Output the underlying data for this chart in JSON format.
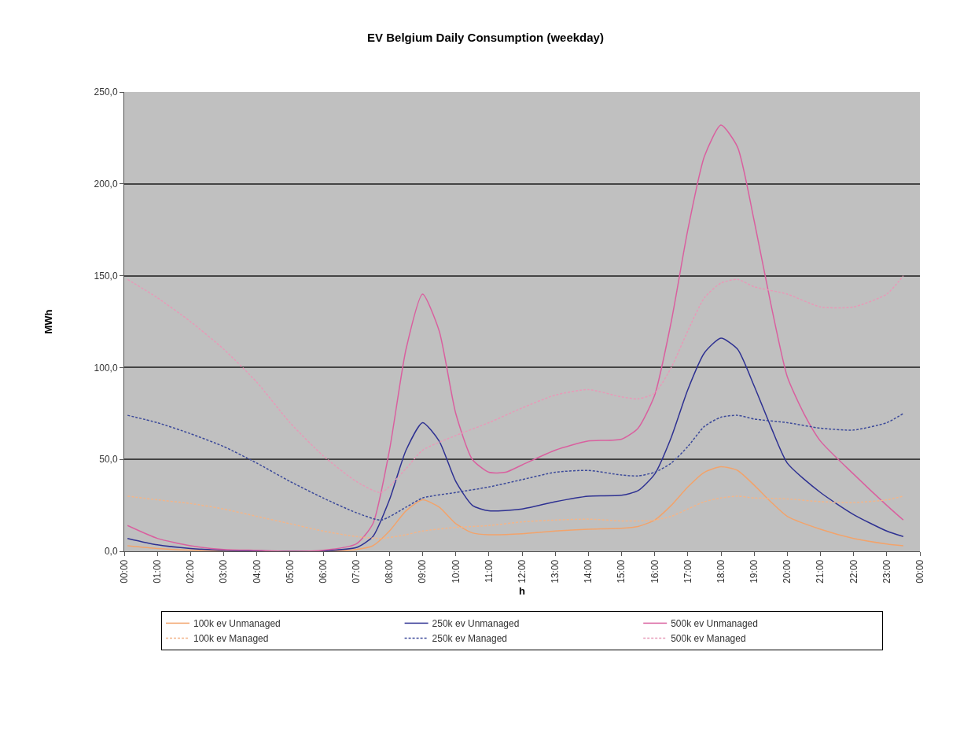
{
  "chart_data": {
    "type": "line",
    "title": "EV Belgium Daily Consumption (weekday)",
    "xlabel": "h",
    "ylabel": "MWh",
    "xlim": [
      0,
      24
    ],
    "xticks": [
      {
        "value": 0,
        "label": "00:00"
      },
      {
        "value": 1,
        "label": "01:00"
      },
      {
        "value": 2,
        "label": "02:00"
      },
      {
        "value": 3,
        "label": "03:00"
      },
      {
        "value": 4,
        "label": "04:00"
      },
      {
        "value": 5,
        "label": "05:00"
      },
      {
        "value": 6,
        "label": "06:00"
      },
      {
        "value": 7,
        "label": "07:00"
      },
      {
        "value": 8,
        "label": "08:00"
      },
      {
        "value": 9,
        "label": "09:00"
      },
      {
        "value": 10,
        "label": "10:00"
      },
      {
        "value": 11,
        "label": "11:00"
      },
      {
        "value": 12,
        "label": "12:00"
      },
      {
        "value": 13,
        "label": "13:00"
      },
      {
        "value": 14,
        "label": "14:00"
      },
      {
        "value": 15,
        "label": "15:00"
      },
      {
        "value": 16,
        "label": "16:00"
      },
      {
        "value": 17,
        "label": "17:00"
      },
      {
        "value": 18,
        "label": "18:00"
      },
      {
        "value": 19,
        "label": "19:00"
      },
      {
        "value": 20,
        "label": "20:00"
      },
      {
        "value": 21,
        "label": "21:00"
      },
      {
        "value": 22,
        "label": "22:00"
      },
      {
        "value": 23,
        "label": "23:00"
      },
      {
        "value": 24,
        "label": "00:00"
      }
    ],
    "ylim": [
      0,
      250
    ],
    "yticks": [
      {
        "value": 0,
        "label": "0,0"
      },
      {
        "value": 50,
        "label": "50,0"
      },
      {
        "value": 100,
        "label": "100,0"
      },
      {
        "value": 150,
        "label": "150,0"
      },
      {
        "value": 200,
        "label": "200,0"
      },
      {
        "value": 250,
        "label": "250,0"
      }
    ],
    "grid": "y",
    "legend": "bottom",
    "marker": "none",
    "series": [
      {
        "name": "100k ev Unmanaged",
        "color": "#f2a36b",
        "line_style": "solid",
        "x": [
          0.1,
          1,
          2,
          3,
          4,
          5,
          6,
          7,
          7.5,
          8,
          8.5,
          9,
          9.5,
          10,
          10.5,
          11,
          12,
          13,
          14,
          15,
          15.5,
          16,
          16.5,
          17,
          17.5,
          18,
          18.5,
          19,
          19.5,
          20,
          21,
          22,
          23,
          23.5
        ],
        "values": [
          3,
          1.5,
          0.6,
          0.2,
          0,
          0,
          0,
          1,
          3,
          11,
          22,
          28,
          24,
          15,
          10,
          9,
          9.5,
          11,
          12,
          12.5,
          13.5,
          17,
          25,
          35,
          43,
          46,
          44,
          36,
          27,
          19,
          12,
          7,
          4,
          3
        ]
      },
      {
        "name": "250k ev Unmanaged",
        "color": "#2e3192",
        "line_style": "solid",
        "x": [
          0.1,
          1,
          2,
          3,
          4,
          5,
          6,
          7,
          7.5,
          8,
          8.5,
          9,
          9.5,
          10,
          10.5,
          11,
          12,
          13,
          14,
          15,
          15.5,
          16,
          16.5,
          17,
          17.5,
          18,
          18.5,
          19,
          19.5,
          20,
          21,
          22,
          23,
          23.5
        ],
        "values": [
          7,
          3.5,
          1.5,
          0.5,
          0.2,
          0,
          0.2,
          2,
          8,
          28,
          55,
          70,
          60,
          38,
          25,
          22,
          23,
          27,
          30,
          30.5,
          33,
          42,
          62,
          88,
          108,
          116,
          110,
          90,
          68,
          48,
          32,
          20,
          11,
          8
        ]
      },
      {
        "name": "500k ev Unmanaged",
        "color": "#d9609f",
        "line_style": "solid",
        "x": [
          0.1,
          1,
          2,
          3,
          4,
          5,
          6,
          7,
          7.5,
          8,
          8.5,
          9,
          9.5,
          10,
          10.5,
          11,
          11.5,
          12,
          13,
          14,
          15,
          15.5,
          16,
          16.5,
          17,
          17.5,
          18,
          18.5,
          19,
          19.5,
          20,
          20.5,
          21,
          22,
          23,
          23.5
        ],
        "values": [
          14,
          7,
          3,
          1,
          0.5,
          0,
          0.5,
          4,
          15,
          55,
          110,
          140,
          120,
          75,
          50,
          43,
          43,
          47,
          55,
          60,
          61,
          67,
          85,
          125,
          175,
          215,
          232,
          220,
          180,
          135,
          95,
          75,
          60,
          42,
          25,
          17
        ]
      },
      {
        "name": "100k ev Managed",
        "color": "#f2b58a",
        "line_style": "dashed",
        "x": [
          0.1,
          1,
          2,
          3,
          4,
          5,
          6,
          7,
          7.75,
          8.5,
          9,
          10,
          11,
          12,
          13,
          14,
          15,
          15.5,
          16,
          16.5,
          17,
          17.5,
          18,
          18.5,
          19,
          20,
          21,
          22,
          23,
          23.5
        ],
        "values": [
          30,
          28,
          26,
          23,
          19,
          15,
          11,
          8,
          7,
          9,
          11,
          13,
          14,
          16,
          17,
          17.5,
          16.5,
          16.5,
          17,
          19,
          23,
          27,
          29,
          30,
          29,
          28.5,
          27,
          26.5,
          28,
          30
        ]
      },
      {
        "name": "250k ev Managed",
        "color": "#3c4a9a",
        "line_style": "dashed",
        "x": [
          0.1,
          1,
          2,
          3,
          4,
          5,
          6,
          7,
          7.75,
          8.5,
          9,
          10,
          11,
          12,
          13,
          14,
          15,
          15.5,
          16,
          16.5,
          17,
          17.5,
          18,
          18.5,
          19,
          20,
          21,
          22,
          23,
          23.5
        ],
        "values": [
          74,
          70,
          64,
          57,
          48,
          38,
          29,
          21,
          17,
          24,
          29,
          32,
          35,
          39,
          43,
          44,
          41.5,
          41,
          43,
          48,
          57,
          68,
          73,
          74,
          72,
          70,
          67,
          66,
          70,
          75
        ]
      },
      {
        "name": "500k ev Managed",
        "color": "#e79ab8",
        "line_style": "dashed",
        "x": [
          0.1,
          1,
          2,
          3,
          4,
          5,
          6,
          7,
          7.75,
          8.5,
          9,
          10,
          11,
          12,
          13,
          14,
          15,
          15.5,
          16,
          16.5,
          17,
          17.5,
          18,
          18.5,
          19,
          20,
          21,
          22,
          23,
          23.5
        ],
        "values": [
          148,
          138,
          125,
          110,
          92,
          70,
          52,
          38,
          32,
          45,
          55,
          63,
          70,
          78,
          85,
          88,
          84,
          83,
          86,
          100,
          120,
          138,
          146,
          148,
          144,
          140,
          133,
          133,
          140,
          150
        ]
      }
    ]
  }
}
